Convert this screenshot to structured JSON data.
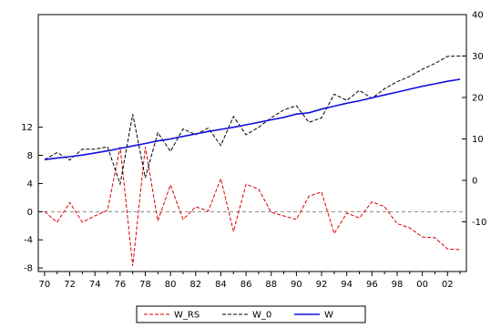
{
  "chart_data": {
    "type": "line",
    "title": "",
    "xlabel": "",
    "x_tick_labels": [
      "70",
      "72",
      "74",
      "76",
      "78",
      "80",
      "82",
      "84",
      "86",
      "88",
      "90",
      "92",
      "94",
      "96",
      "98",
      "00",
      "02"
    ],
    "x_tick_years": [
      1970,
      1972,
      1974,
      1976,
      1978,
      1980,
      1982,
      1984,
      1986,
      1988,
      1990,
      1992,
      1994,
      1996,
      1998,
      2000,
      2002
    ],
    "xlim": [
      1969.5,
      2003.5
    ],
    "left_axis": {
      "ylim": [
        -8.5,
        28
      ],
      "ticks": [
        -8,
        -4,
        0,
        4,
        8,
        12
      ],
      "tick_labels": [
        "-8",
        "-4",
        "0",
        "4",
        "8",
        "12"
      ]
    },
    "right_axis": {
      "ylim": [
        -22,
        40
      ],
      "ticks": [
        -10,
        0,
        10,
        20,
        30,
        40
      ],
      "tick_labels": [
        "-10",
        "0",
        "10",
        "20",
        "30",
        "40"
      ]
    },
    "zero_line": {
      "axis": "left",
      "value": 0,
      "style": "dashed",
      "color": "#888888"
    },
    "x": [
      1970,
      1971,
      1972,
      1973,
      1974,
      1975,
      1976,
      1977,
      1978,
      1979,
      1980,
      1981,
      1982,
      1983,
      1984,
      1985,
      1986,
      1987,
      1988,
      1989,
      1990,
      1991,
      1992,
      1993,
      1994,
      1995,
      1996,
      1997,
      1998,
      1999,
      2000,
      2001,
      2002,
      2003
    ],
    "series": [
      {
        "name": "W_RS",
        "axis": "left",
        "color": "#e00000",
        "style": "dashed",
        "values": [
          0,
          -1.5,
          1.3,
          -1.5,
          -0.6,
          0.2,
          9.2,
          -7.7,
          9.2,
          -1.3,
          3.8,
          -1.1,
          0.7,
          0.1,
          4.7,
          -2.8,
          3.9,
          3.2,
          -0.1,
          -0.6,
          -1.1,
          2.2,
          2.8,
          -3.1,
          -0.2,
          -0.9,
          1.4,
          0.7,
          -1.7,
          -2.3,
          -3.6,
          -3.7,
          -5.3,
          -5.4
        ]
      },
      {
        "name": "W_0",
        "axis": "right",
        "color": "#000000",
        "style": "dashed",
        "values": [
          5,
          6.7,
          4.9,
          7.5,
          7.5,
          8.1,
          -0.9,
          16,
          0.6,
          11.5,
          7,
          12.4,
          11,
          12.6,
          8.4,
          15.4,
          11,
          12.8,
          15.1,
          17,
          18,
          14,
          15.1,
          20.8,
          19.3,
          21.7,
          19.8,
          22.1,
          23.8,
          25.1,
          26.8,
          28.2,
          29.9,
          30
        ]
      },
      {
        "name": "W",
        "axis": "right",
        "color": "#1010e0",
        "style": "solid",
        "values": [
          5,
          5.4,
          5.7,
          6.1,
          6.6,
          7.1,
          7.7,
          8.3,
          8.9,
          9.5,
          10,
          10.6,
          11.2,
          11.8,
          12.3,
          12.8,
          13.4,
          14,
          14.6,
          15.2,
          16,
          16.3,
          17.2,
          17.9,
          18.6,
          19.2,
          19.9,
          20.6,
          21.3,
          22,
          22.7,
          23.3,
          23.9,
          24.4
        ]
      }
    ],
    "legend": {
      "placement": "bottom-center",
      "entries": [
        "W_RS",
        "W_0",
        "W"
      ]
    },
    "grid": false
  }
}
